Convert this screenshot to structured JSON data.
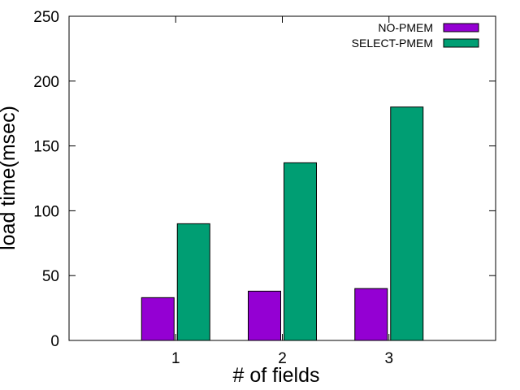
{
  "chart_data": {
    "type": "bar",
    "categories": [
      "1",
      "2",
      "3"
    ],
    "series": [
      {
        "name": "NO-PMEM",
        "color": "#9400d3",
        "values": [
          33,
          38,
          40
        ]
      },
      {
        "name": "SELECT-PMEM",
        "color": "#009e73",
        "values": [
          90,
          137,
          180
        ]
      }
    ],
    "xlabel": "# of fields",
    "ylabel": "load time(msec)",
    "ylim": [
      0,
      250
    ],
    "yticks": [
      0,
      50,
      100,
      150,
      200,
      250
    ],
    "xlim": [
      0,
      4
    ],
    "grid": false,
    "legend": "top-right"
  }
}
